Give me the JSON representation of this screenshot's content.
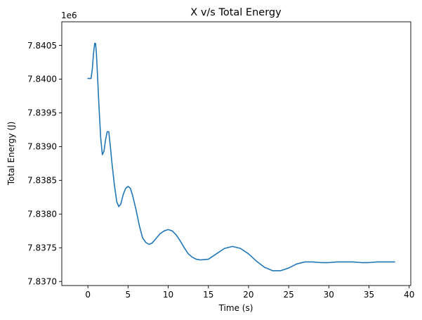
{
  "chart_data": {
    "type": "line",
    "title": "X v/s Total Energy",
    "xlabel": "Time (s)",
    "ylabel": "Total Energy (J)",
    "y_offset_label": "1e6",
    "xlim": [
      -3.25,
      40.2
    ],
    "ylim": [
      7.83694,
      7.84085
    ],
    "x_ticks": [
      0,
      5,
      10,
      15,
      20,
      25,
      30,
      35,
      40
    ],
    "x_tick_labels": [
      "0",
      "5",
      "10",
      "15",
      "20",
      "25",
      "30",
      "35",
      "40"
    ],
    "y_ticks": [
      7.837,
      7.8375,
      7.838,
      7.8385,
      7.839,
      7.8395,
      7.84,
      7.8405
    ],
    "y_tick_labels": [
      "7.8370",
      "7.8375",
      "7.8380",
      "7.8385",
      "7.8390",
      "7.8395",
      "7.8400",
      "7.8405"
    ],
    "grid": false,
    "legend": "none",
    "colors": {
      "line": "#1f77b4",
      "axes": "#000000"
    },
    "series": [
      {
        "x": [
          0,
          0.4,
          0.55,
          0.7,
          0.85,
          0.95,
          1.05,
          1.2,
          1.4,
          1.6,
          1.8,
          2.0,
          2.2,
          2.4,
          2.6,
          2.8,
          3.0,
          3.3,
          3.6,
          3.85,
          4.1,
          4.4,
          4.7,
          5.0,
          5.3,
          5.6,
          6.0,
          6.4,
          6.8,
          7.2,
          7.6,
          8.0,
          8.5,
          9.0,
          9.5,
          10.0,
          10.5,
          11.0,
          11.5,
          12.0,
          12.5,
          13.0,
          13.5,
          14.0,
          15.0,
          16.0,
          17.0,
          18.0,
          19.0,
          20.0,
          21.0,
          22.0,
          23.0,
          24.0,
          25.0,
          26.0,
          27.0,
          28.0,
          29.0,
          30.0,
          31.0,
          32.0,
          33.0,
          34.0,
          35.0,
          36.0,
          37.0,
          38.2
        ],
        "y": [
          7.84001,
          7.84001,
          7.84015,
          7.84038,
          7.84053,
          7.84053,
          7.8404,
          7.84005,
          7.83955,
          7.83912,
          7.83888,
          7.83893,
          7.8391,
          7.83922,
          7.83922,
          7.839,
          7.83875,
          7.83843,
          7.83818,
          7.83811,
          7.83815,
          7.83829,
          7.83838,
          7.83841,
          7.83838,
          7.83826,
          7.83806,
          7.83783,
          7.83765,
          7.83758,
          7.83755,
          7.83757,
          7.83764,
          7.83771,
          7.83775,
          7.83777,
          7.83775,
          7.83769,
          7.8376,
          7.8375,
          7.83741,
          7.83736,
          7.83733,
          7.83732,
          7.83733,
          7.83741,
          7.83749,
          7.83752,
          7.83749,
          7.83741,
          7.8373,
          7.83721,
          7.83716,
          7.83716,
          7.8372,
          7.83726,
          7.83729,
          7.83729,
          7.83728,
          7.83728,
          7.83729,
          7.83729,
          7.83729,
          7.83728,
          7.83728,
          7.83729,
          7.83729,
          7.83729
        ]
      }
    ]
  }
}
